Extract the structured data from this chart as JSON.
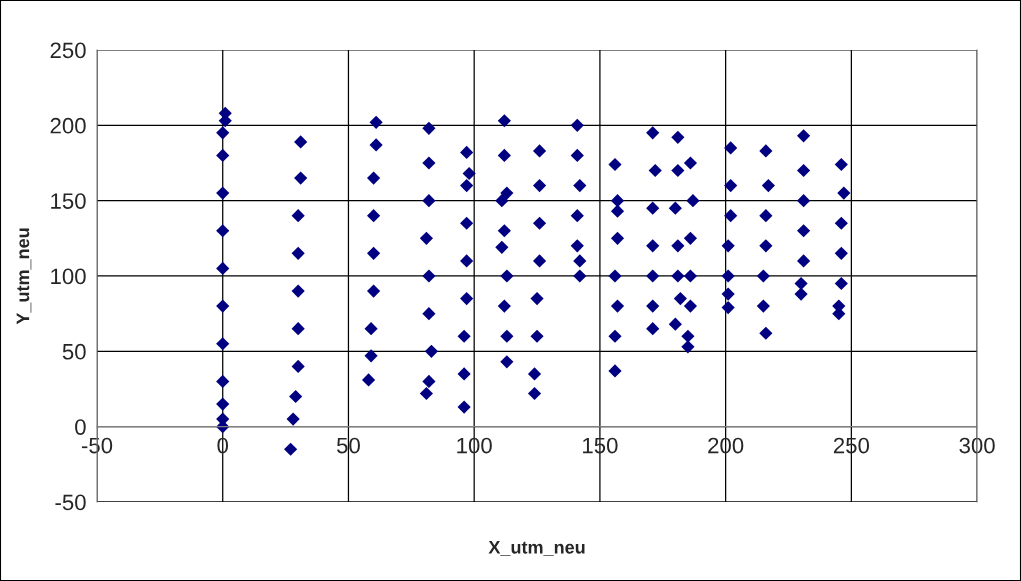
{
  "chart_data": {
    "type": "scatter",
    "xlabel": "X_utm_neu",
    "ylabel": "Y_utm_neu",
    "xlim": [
      -50,
      300
    ],
    "xticks": [
      -50,
      0,
      50,
      100,
      150,
      200,
      250,
      300
    ],
    "ylim": [
      -50,
      250
    ],
    "yticks": [
      -50,
      0,
      50,
      100,
      150,
      200,
      250
    ],
    "grid": true,
    "marker": "diamond",
    "series": [
      {
        "color": "#000080",
        "x": [
          0,
          1,
          0,
          0,
          0,
          0,
          0,
          0,
          0,
          0,
          0,
          0,
          1,
          31,
          31,
          30,
          30,
          30,
          30,
          30,
          29,
          28,
          27,
          58,
          59,
          59,
          60,
          60,
          60,
          60,
          61,
          61,
          82,
          82,
          82,
          81,
          82,
          82,
          83,
          82,
          81,
          97,
          97,
          97,
          97,
          97,
          96,
          96,
          96,
          98,
          112,
          112,
          113,
          111,
          113,
          112,
          113,
          111,
          112,
          113,
          126,
          126,
          126,
          126,
          125,
          125,
          124,
          124,
          141,
          141,
          142,
          141,
          141,
          142,
          142,
          156,
          157,
          157,
          156,
          157,
          156,
          156,
          157,
          171,
          172,
          171,
          171,
          171,
          171,
          171,
          181,
          181,
          180,
          181,
          181,
          180,
          182,
          186,
          187,
          186,
          186,
          186,
          185,
          185,
          202,
          202,
          202,
          201,
          201,
          201,
          201,
          216,
          217,
          216,
          216,
          215,
          215,
          216,
          231,
          231,
          231,
          231,
          231,
          230,
          230,
          246,
          247,
          246,
          246,
          246,
          245,
          245
        ],
        "values": [
          0,
          208,
          195,
          180,
          155,
          130,
          105,
          80,
          55,
          30,
          15,
          5,
          203,
          189,
          165,
          140,
          115,
          90,
          65,
          40,
          20,
          5,
          -15,
          31,
          47,
          65,
          90,
          115,
          140,
          165,
          187,
          202,
          198,
          175,
          150,
          125,
          100,
          75,
          50,
          30,
          22,
          182,
          160,
          135,
          110,
          85,
          60,
          35,
          13,
          168,
          203,
          180,
          155,
          119,
          100,
          80,
          60,
          150,
          130,
          43,
          183,
          160,
          135,
          110,
          85,
          60,
          35,
          22,
          200,
          180,
          160,
          140,
          120,
          100,
          110,
          174,
          150,
          125,
          100,
          80,
          60,
          37,
          143,
          195,
          170,
          145,
          120,
          100,
          80,
          65,
          192,
          170,
          145,
          120,
          100,
          68,
          85,
          175,
          150,
          125,
          100,
          80,
          60,
          53,
          185,
          160,
          140,
          120,
          100,
          79,
          88,
          183,
          160,
          140,
          120,
          100,
          80,
          62,
          193,
          170,
          150,
          130,
          110,
          88,
          95,
          174,
          155,
          135,
          115,
          95,
          75,
          80
        ]
      }
    ]
  }
}
